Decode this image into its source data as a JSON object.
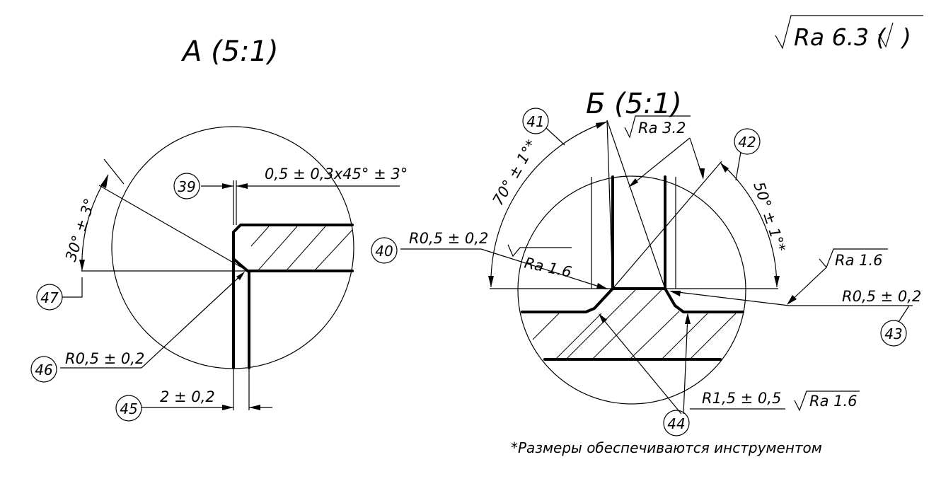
{
  "titles": {
    "view_a": "A  (5:1)",
    "view_b": "Б  (5:1)",
    "general_roughness": "Ra 6.3 (",
    "general_roughness_close": ")"
  },
  "view_a": {
    "chamfer_dim": "0,5 ± 0,3x45° ± 3°",
    "angle_dim": "30° ± 3°",
    "radius_dim": "R0,5 ± 0,2",
    "thickness_dim": "2 ± 0,2",
    "callouts": [
      "39",
      "45",
      "46",
      "47"
    ]
  },
  "view_b": {
    "angle_left": "70° ± 1°*",
    "angle_right": "50° ± 1°*",
    "roughness_top": "Ra 3.2",
    "roughness_left": "Ra 1.6",
    "roughness_right": "Ra 1.6",
    "roughness_bottom": "Ra 1.6",
    "radius_left": "R0,5 ± 0,2",
    "radius_right": "R0,5 ± 0,2",
    "radius_bottom": "R1,5 ± 0,5",
    "callouts": [
      "40",
      "41",
      "42",
      "43",
      "44"
    ]
  },
  "footnote": "*Размеры обеспечиваются инструментом"
}
